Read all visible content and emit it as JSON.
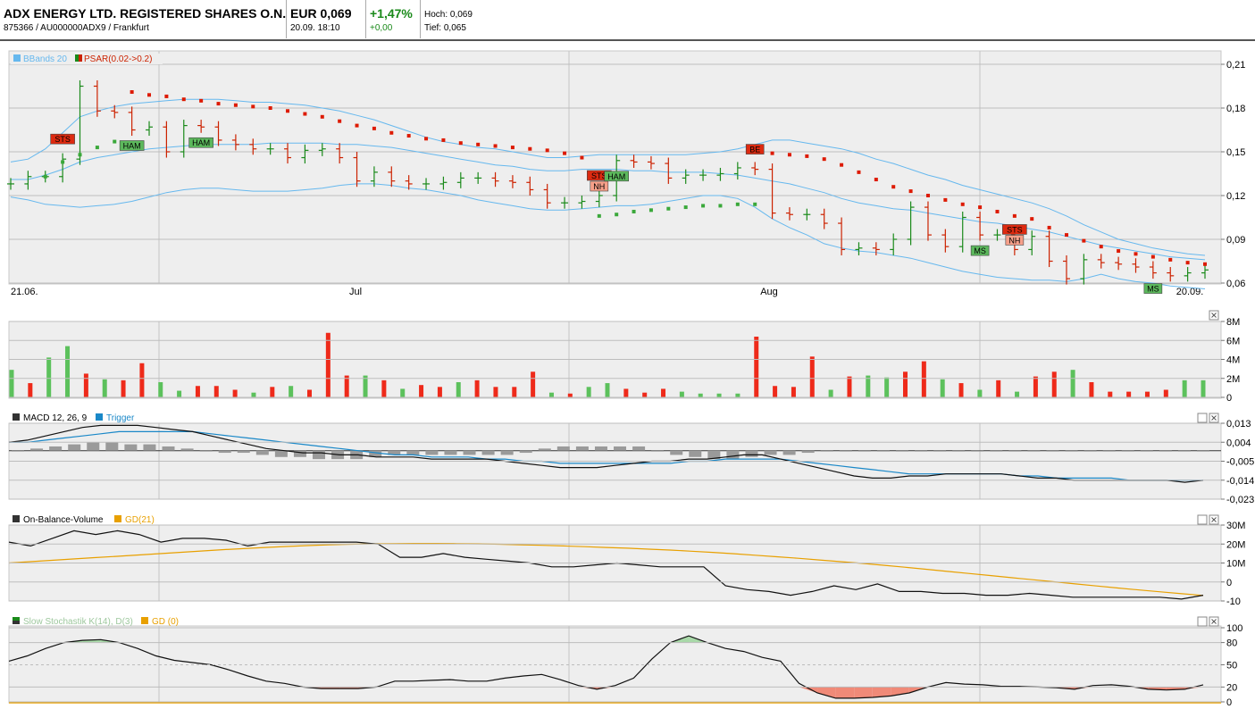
{
  "header": {
    "name": "ADX ENERGY LTD. REGISTERED SHARES O.N.",
    "ident": "875366 / AU000000ADX9 / Frankfurt",
    "price": "EUR 0,069",
    "datetime": "20.09. 18:10",
    "change_pct": "+1,47%",
    "change_abs": "+0,00",
    "high": "Hoch: 0,069",
    "low": "Tief: 0,065"
  },
  "colors": {
    "up": "#1a8a1a",
    "down": "#cc2200",
    "band": "#66b8ee",
    "gd": "#e8a000",
    "vol_up": "#5cc15c",
    "vol_down": "#ee2a1a",
    "hist": "#9a9a9a",
    "panel_bg": "#eeeeee"
  },
  "chart_data": [
    {
      "type": "ohlc",
      "title": "",
      "legend": [
        "BBands 20",
        "PSAR(0.02->0.2)"
      ],
      "x_labels": [
        "21.06.",
        "Jul",
        "Aug",
        "20.09."
      ],
      "y_ticks": [
        "0,21",
        "0,18",
        "0,15",
        "0,12",
        "0,09",
        "0,06"
      ],
      "ylim": [
        0.06,
        0.21
      ],
      "close": [
        0.128,
        0.133,
        0.133,
        0.145,
        0.195,
        0.178,
        0.177,
        0.165,
        0.167,
        0.15,
        0.168,
        0.167,
        0.158,
        0.155,
        0.152,
        0.152,
        0.146,
        0.151,
        0.152,
        0.146,
        0.13,
        0.136,
        0.13,
        0.128,
        0.128,
        0.129,
        0.132,
        0.132,
        0.13,
        0.129,
        0.124,
        0.115,
        0.115,
        0.116,
        0.12,
        0.144,
        0.143,
        0.142,
        0.132,
        0.134,
        0.134,
        0.135,
        0.139,
        0.138,
        0.108,
        0.107,
        0.107,
        0.101,
        0.083,
        0.084,
        0.083,
        0.09,
        0.112,
        0.093,
        0.085,
        0.105,
        0.093,
        0.093,
        0.083,
        0.092,
        0.075,
        0.063,
        0.076,
        0.074,
        0.073,
        0.071,
        0.067,
        0.065,
        0.067,
        0.069
      ],
      "bbands_upper": [
        0.143,
        0.145,
        0.152,
        0.163,
        0.174,
        0.178,
        0.181,
        0.183,
        0.184,
        0.185,
        0.186,
        0.186,
        0.186,
        0.185,
        0.184,
        0.184,
        0.183,
        0.182,
        0.18,
        0.178,
        0.175,
        0.172,
        0.168,
        0.164,
        0.16,
        0.157,
        0.155,
        0.153,
        0.152,
        0.15,
        0.148,
        0.146,
        0.146,
        0.147,
        0.148,
        0.148,
        0.148,
        0.148,
        0.148,
        0.148,
        0.149,
        0.15,
        0.152,
        0.155,
        0.158,
        0.158,
        0.156,
        0.154,
        0.152,
        0.149,
        0.145,
        0.142,
        0.138,
        0.134,
        0.131,
        0.127,
        0.124,
        0.121,
        0.118,
        0.115,
        0.111,
        0.106,
        0.1,
        0.095,
        0.09,
        0.087,
        0.084,
        0.082,
        0.08,
        0.079
      ],
      "bbands_middle": [
        0.131,
        0.131,
        0.134,
        0.138,
        0.143,
        0.146,
        0.148,
        0.15,
        0.152,
        0.153,
        0.154,
        0.155,
        0.155,
        0.155,
        0.155,
        0.156,
        0.156,
        0.156,
        0.156,
        0.155,
        0.155,
        0.154,
        0.153,
        0.151,
        0.149,
        0.147,
        0.145,
        0.143,
        0.141,
        0.14,
        0.138,
        0.137,
        0.137,
        0.138,
        0.138,
        0.138,
        0.137,
        0.137,
        0.136,
        0.136,
        0.136,
        0.135,
        0.134,
        0.132,
        0.13,
        0.128,
        0.125,
        0.122,
        0.118,
        0.115,
        0.113,
        0.111,
        0.11,
        0.108,
        0.106,
        0.104,
        0.102,
        0.101,
        0.099,
        0.097,
        0.095,
        0.092,
        0.089,
        0.086,
        0.084,
        0.082,
        0.08,
        0.078,
        0.077,
        0.076
      ],
      "bbands_lower": [
        0.119,
        0.117,
        0.114,
        0.113,
        0.112,
        0.113,
        0.114,
        0.116,
        0.119,
        0.122,
        0.124,
        0.125,
        0.125,
        0.124,
        0.123,
        0.123,
        0.123,
        0.124,
        0.125,
        0.127,
        0.128,
        0.128,
        0.127,
        0.125,
        0.124,
        0.122,
        0.12,
        0.117,
        0.115,
        0.113,
        0.111,
        0.11,
        0.11,
        0.111,
        0.112,
        0.113,
        0.113,
        0.114,
        0.116,
        0.118,
        0.12,
        0.12,
        0.118,
        0.112,
        0.104,
        0.098,
        0.093,
        0.087,
        0.084,
        0.082,
        0.081,
        0.079,
        0.077,
        0.074,
        0.071,
        0.068,
        0.066,
        0.064,
        0.063,
        0.062,
        0.062,
        0.061,
        0.063,
        0.066,
        0.063,
        0.061,
        0.06,
        0.058,
        0.057,
        0.056
      ],
      "psar": [
        null,
        null,
        null,
        null,
        null,
        null,
        null,
        0.191,
        0.189,
        0.188,
        0.186,
        0.185,
        0.183,
        0.182,
        0.181,
        0.18,
        0.178,
        0.176,
        0.174,
        0.171,
        0.168,
        0.166,
        0.163,
        0.161,
        0.159,
        0.158,
        0.156,
        0.155,
        0.154,
        0.153,
        0.152,
        0.151,
        0.149,
        0.146,
        null,
        null,
        null,
        null,
        null,
        null,
        null,
        null,
        null,
        null,
        0.149,
        0.148,
        0.147,
        0.145,
        0.141,
        0.136,
        0.131,
        0.126,
        0.123,
        0.12,
        0.117,
        0.114,
        0.112,
        0.109,
        0.106,
        0.104,
        0.098,
        0.093,
        0.089,
        0.085,
        0.082,
        0.08,
        0.078,
        0.076,
        0.074,
        0.073
      ],
      "psar_low": [
        null,
        null,
        0.133,
        0.143,
        0.148,
        0.153,
        0.157,
        null,
        null,
        null,
        null,
        null,
        null,
        null,
        null,
        null,
        null,
        null,
        null,
        null,
        null,
        null,
        null,
        null,
        null,
        null,
        null,
        null,
        null,
        null,
        null,
        null,
        null,
        null,
        0.106,
        0.107,
        0.109,
        0.11,
        0.111,
        0.112,
        0.113,
        0.113,
        0.114,
        0.114,
        null,
        null,
        null,
        null,
        null,
        null,
        null,
        null,
        null,
        null,
        null,
        null,
        null,
        null,
        null,
        null,
        null,
        null,
        null,
        null,
        null,
        null,
        null,
        null,
        null,
        null
      ],
      "annotations": [
        {
          "index": 3,
          "label": "STS",
          "kind": "down",
          "pos": "above"
        },
        {
          "index": 7,
          "label": "HAM",
          "kind": "up",
          "pos": "below"
        },
        {
          "index": 11,
          "label": "HAM",
          "kind": "up",
          "pos": "below"
        },
        {
          "index": 34,
          "label": "STS",
          "kind": "down",
          "pos": "above"
        },
        {
          "index": 34,
          "label": "NH",
          "kind": "nh",
          "pos": "above2"
        },
        {
          "index": 35,
          "label": "HAM",
          "kind": "up",
          "pos": "below"
        },
        {
          "index": 43,
          "label": "BE",
          "kind": "down",
          "pos": "above"
        },
        {
          "index": 58,
          "label": "STS",
          "kind": "down",
          "pos": "above"
        },
        {
          "index": 58,
          "label": "NH",
          "kind": "nh",
          "pos": "above2"
        },
        {
          "index": 56,
          "label": "MS",
          "kind": "up",
          "pos": "below"
        },
        {
          "index": 66,
          "label": "MS",
          "kind": "up",
          "pos": "below"
        }
      ]
    },
    {
      "type": "bar",
      "title": "",
      "y_ticks": [
        "8M",
        "6M",
        "4M",
        "2M",
        "0"
      ],
      "ylim": [
        0,
        8
      ],
      "values": [
        2.9,
        1.5,
        4.2,
        5.4,
        2.5,
        1.9,
        1.8,
        3.6,
        1.6,
        0.7,
        1.2,
        1.2,
        0.8,
        0.5,
        1.1,
        1.2,
        0.8,
        6.8,
        2.3,
        2.3,
        1.8,
        0.9,
        1.3,
        1.1,
        1.6,
        1.8,
        1.1,
        1.1,
        2.7,
        0.5,
        0.4,
        1.1,
        1.5,
        0.9,
        0.5,
        0.9,
        0.6,
        0.4,
        0.4,
        0.4,
        6.4,
        1.2,
        1.1,
        4.3,
        0.8,
        2.2,
        2.3,
        2.1,
        2.7,
        3.8,
        1.9,
        1.5,
        0.8,
        1.8,
        0.6,
        2.2,
        2.7,
        2.9,
        1.6,
        0.6,
        0.6,
        0.6,
        0.8,
        1.8,
        1.8
      ],
      "up": [
        true,
        false,
        true,
        true,
        false,
        true,
        false,
        false,
        true,
        true,
        false,
        false,
        false,
        true,
        false,
        true,
        false,
        false,
        false,
        true,
        false,
        true,
        false,
        false,
        true,
        false,
        false,
        false,
        false,
        true,
        false,
        true,
        true,
        false,
        false,
        false,
        true,
        true,
        true,
        true,
        false,
        false,
        false,
        false,
        true,
        false,
        true,
        true,
        false,
        false,
        true,
        false,
        true,
        false,
        true,
        false,
        false,
        true,
        false,
        false,
        false,
        false,
        false,
        true,
        true
      ]
    },
    {
      "type": "line",
      "title": "",
      "legend": [
        "MACD 12, 26, 9",
        "Trigger"
      ],
      "y_ticks": [
        "0,013",
        "0,004",
        "-0,005",
        "-0,014",
        "-0,023"
      ],
      "ylim": [
        -0.023,
        0.013
      ],
      "macd": [
        0.004,
        0.005,
        0.007,
        0.009,
        0.011,
        0.012,
        0.012,
        0.012,
        0.011,
        0.01,
        0.009,
        0.007,
        0.005,
        0.003,
        0.001,
        0.0,
        -0.001,
        -0.001,
        -0.002,
        -0.002,
        -0.003,
        -0.003,
        -0.003,
        -0.004,
        -0.004,
        -0.004,
        -0.004,
        -0.005,
        -0.006,
        -0.007,
        -0.008,
        -0.008,
        -0.008,
        -0.007,
        -0.006,
        -0.005,
        -0.005,
        -0.004,
        -0.004,
        -0.003,
        -0.002,
        -0.002,
        -0.004,
        -0.006,
        -0.008,
        -0.01,
        -0.012,
        -0.013,
        -0.013,
        -0.012,
        -0.012,
        -0.011,
        -0.011,
        -0.011,
        -0.011,
        -0.012,
        -0.013,
        -0.013,
        -0.014,
        -0.014,
        -0.014,
        -0.014,
        -0.014,
        -0.014,
        -0.015,
        -0.014
      ],
      "trigger": [
        0.004,
        0.004,
        0.005,
        0.006,
        0.007,
        0.008,
        0.009,
        0.009,
        0.009,
        0.009,
        0.009,
        0.008,
        0.007,
        0.006,
        0.005,
        0.004,
        0.003,
        0.002,
        0.001,
        0.0,
        -0.001,
        -0.002,
        -0.002,
        -0.003,
        -0.003,
        -0.003,
        -0.004,
        -0.004,
        -0.005,
        -0.005,
        -0.006,
        -0.006,
        -0.006,
        -0.006,
        -0.006,
        -0.006,
        -0.006,
        -0.005,
        -0.005,
        -0.004,
        -0.004,
        -0.004,
        -0.004,
        -0.005,
        -0.006,
        -0.007,
        -0.008,
        -0.009,
        -0.01,
        -0.011,
        -0.011,
        -0.011,
        -0.011,
        -0.011,
        -0.011,
        -0.012,
        -0.012,
        -0.013,
        -0.013,
        -0.013,
        -0.013,
        -0.014,
        -0.014,
        -0.014,
        -0.014,
        -0.014
      ],
      "histogram": [
        0.0,
        0.001,
        0.002,
        0.003,
        0.004,
        0.004,
        0.003,
        0.003,
        0.002,
        0.001,
        0.0,
        -0.001,
        -0.001,
        -0.002,
        -0.003,
        -0.003,
        -0.004,
        -0.004,
        -0.004,
        -0.003,
        -0.002,
        -0.002,
        -0.002,
        -0.002,
        -0.002,
        -0.002,
        -0.002,
        -0.001,
        0.001,
        0.002,
        0.002,
        0.002,
        0.002,
        0.002,
        0.0,
        -0.002,
        -0.003,
        -0.004,
        -0.004,
        -0.003,
        -0.002,
        -0.002,
        -0.001,
        0.0,
        0.0,
        0.0,
        0.0,
        0.0,
        0.0,
        0.0,
        0.0,
        0.0,
        0.0,
        0.0,
        0.0,
        0.0,
        0.0,
        0.0,
        0.0,
        0.0,
        0.0,
        0.0,
        0.0,
        0.0
      ]
    },
    {
      "type": "line",
      "title": "",
      "legend": [
        "On-Balance-Volume",
        "GD(21)"
      ],
      "y_ticks": [
        "30M",
        "20M",
        "10M",
        "0",
        "-10"
      ],
      "ylim": [
        -10,
        30
      ],
      "obv": [
        21,
        19,
        23,
        27,
        25,
        27,
        25,
        21,
        23,
        23,
        22,
        19,
        21,
        21,
        21,
        21,
        21,
        20,
        13,
        13,
        15,
        13,
        12,
        11,
        10,
        8,
        8,
        9,
        10,
        9,
        8,
        8,
        8,
        -2,
        -4,
        -5,
        -7,
        -5,
        -2,
        -4,
        -1,
        -5,
        -5,
        -6,
        -6,
        -7,
        -7,
        -6,
        -7,
        -8,
        -8,
        -8,
        -8,
        -8,
        -9,
        -7
      ],
      "gd": [
        10,
        10.7,
        11.4,
        12.1,
        12.8,
        13.5,
        14.2,
        14.9,
        15.6,
        16.3,
        17,
        17.6,
        18.2,
        18.7,
        19.2,
        19.6,
        19.9,
        20.1,
        20.2,
        20.3,
        20.3,
        20.2,
        20.1,
        19.9,
        19.6,
        19.3,
        19,
        18.6,
        18.2,
        17.8,
        17.3,
        16.8,
        16.2,
        15.6,
        14.9,
        14.1,
        13.3,
        12.5,
        11.6,
        10.7,
        9.8,
        8.8,
        7.8,
        6.7,
        5.6,
        4.5,
        3.4,
        2.3,
        1.2,
        0.1,
        -1,
        -2.1,
        -3.2,
        -4.2,
        -5.2,
        -6.2,
        -7.1
      ]
    },
    {
      "type": "line",
      "title": "",
      "legend": [
        "Slow Stochastik K(14), D(3)",
        "GD (0)"
      ],
      "y_ticks": [
        "100",
        "80",
        "50",
        "20",
        "0"
      ],
      "ylim": [
        0,
        100
      ],
      "k": [
        55,
        62,
        72,
        80,
        83,
        84,
        80,
        72,
        62,
        56,
        53,
        50,
        43,
        35,
        28,
        25,
        20,
        18,
        18,
        18,
        20,
        28,
        28,
        29,
        30,
        28,
        28,
        32,
        35,
        37,
        30,
        22,
        17,
        22,
        32,
        58,
        80,
        89,
        80,
        72,
        68,
        60,
        55,
        25,
        12,
        5,
        5,
        6,
        8,
        12,
        20,
        26,
        24,
        23,
        21,
        21,
        20,
        19,
        17,
        22,
        23,
        21,
        17,
        16,
        17,
        23
      ]
    }
  ]
}
